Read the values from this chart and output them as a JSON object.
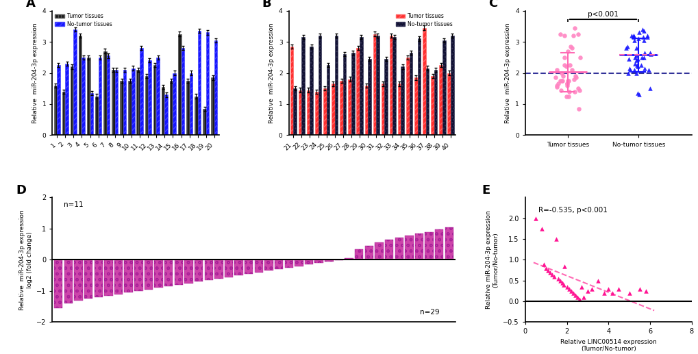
{
  "panel_A_tumor": [
    1.6,
    1.4,
    2.2,
    3.2,
    2.5,
    1.25,
    2.7,
    2.1,
    1.75,
    1.75,
    2.1,
    1.9,
    2.25,
    1.55,
    1.75,
    3.25,
    1.75,
    1.25,
    0.85,
    1.85
  ],
  "panel_A_notumor": [
    2.25,
    2.3,
    3.4,
    2.5,
    1.35,
    2.5,
    2.55,
    2.1,
    2.1,
    2.15,
    2.8,
    2.4,
    2.5,
    1.3,
    2.0,
    2.8,
    2.0,
    3.35,
    3.3,
    3.05
  ],
  "panel_A_labels": [
    "1",
    "2",
    "3",
    "4",
    "5",
    "6",
    "7",
    "8",
    "9",
    "10",
    "11",
    "12",
    "13",
    "14",
    "15",
    "16",
    "17",
    "18",
    "19",
    "20"
  ],
  "panel_B_tumor": [
    2.85,
    1.45,
    1.45,
    1.4,
    1.5,
    1.65,
    1.75,
    1.8,
    2.8,
    1.6,
    3.25,
    1.65,
    3.2,
    1.65,
    2.5,
    1.85,
    3.45,
    1.9,
    2.25,
    2.0
  ],
  "panel_B_notumor": [
    1.5,
    3.15,
    2.85,
    3.2,
    2.25,
    3.2,
    2.6,
    2.65,
    3.15,
    2.45,
    3.2,
    2.45,
    3.15,
    2.2,
    2.65,
    3.1,
    2.15,
    2.1,
    3.05,
    3.2
  ],
  "panel_B_labels": [
    "21",
    "22",
    "23",
    "24",
    "25",
    "26",
    "27",
    "28",
    "29",
    "30",
    "31",
    "32",
    "33",
    "34",
    "35",
    "36",
    "37",
    "38",
    "39",
    "40"
  ],
  "panel_C_tumor": [
    1.6,
    1.4,
    2.2,
    3.2,
    2.5,
    1.25,
    2.7,
    2.1,
    1.75,
    1.75,
    2.1,
    1.9,
    2.25,
    1.55,
    1.75,
    3.25,
    1.75,
    1.25,
    0.85,
    1.85,
    2.85,
    1.45,
    1.45,
    1.4,
    1.5,
    1.65,
    1.75,
    1.8,
    2.8,
    1.6,
    3.25,
    1.65,
    3.2,
    1.65,
    2.5,
    1.85,
    3.45,
    1.9,
    2.25,
    2.0
  ],
  "panel_C_notumor": [
    2.25,
    2.3,
    3.4,
    2.5,
    1.35,
    2.5,
    2.55,
    2.1,
    2.1,
    2.15,
    2.8,
    2.4,
    2.5,
    1.3,
    2.0,
    2.8,
    2.0,
    3.35,
    3.3,
    3.05,
    1.5,
    3.15,
    2.85,
    3.2,
    2.25,
    3.2,
    2.6,
    2.65,
    3.15,
    2.45,
    3.2,
    2.45,
    3.15,
    2.2,
    2.65,
    3.1,
    2.15,
    2.1,
    3.05,
    3.2
  ],
  "panel_D_values": [
    -1.55,
    -1.4,
    -1.3,
    -1.25,
    -1.2,
    -1.15,
    -1.1,
    -1.05,
    -1.0,
    -0.95,
    -0.9,
    -0.85,
    -0.8,
    -0.75,
    -0.7,
    -0.65,
    -0.6,
    -0.55,
    -0.5,
    -0.45,
    -0.4,
    -0.35,
    -0.3,
    -0.25,
    -0.2,
    -0.15,
    -0.1,
    -0.05,
    -0.02,
    0.05,
    0.35,
    0.45,
    0.55,
    0.65,
    0.72,
    0.78,
    0.85,
    0.9,
    0.97,
    1.05
  ],
  "panel_E_x": [
    0.5,
    0.8,
    0.9,
    1.0,
    1.1,
    1.2,
    1.3,
    1.4,
    1.5,
    1.6,
    1.7,
    1.8,
    1.85,
    1.9,
    2.0,
    2.1,
    2.2,
    2.3,
    2.4,
    2.5,
    2.6,
    2.7,
    2.8,
    3.0,
    3.2,
    3.5,
    3.8,
    4.0,
    4.2,
    4.5,
    5.0,
    5.5,
    5.8
  ],
  "panel_E_y": [
    2.0,
    1.75,
    0.9,
    0.8,
    0.75,
    0.7,
    0.65,
    0.6,
    1.5,
    0.55,
    0.5,
    0.45,
    0.4,
    0.85,
    0.35,
    0.3,
    0.25,
    0.2,
    0.15,
    0.1,
    0.05,
    0.35,
    0.1,
    0.25,
    0.3,
    0.5,
    0.2,
    0.3,
    0.2,
    0.3,
    0.2,
    0.3,
    0.25
  ],
  "color_tumor_A": "#1a1a1a",
  "color_notumor_A": "#1515ff",
  "color_tumor_B": "#ff3030",
  "color_notumor_B": "#111122",
  "color_pink": "#ff85c2",
  "color_pink_dark": "#ff69b4",
  "color_blue": "#1515ff",
  "color_D": "#cc44aa",
  "color_E_scatter": "#ff1493",
  "color_E_line": "#ff69b4",
  "bg_color": "#ffffff"
}
